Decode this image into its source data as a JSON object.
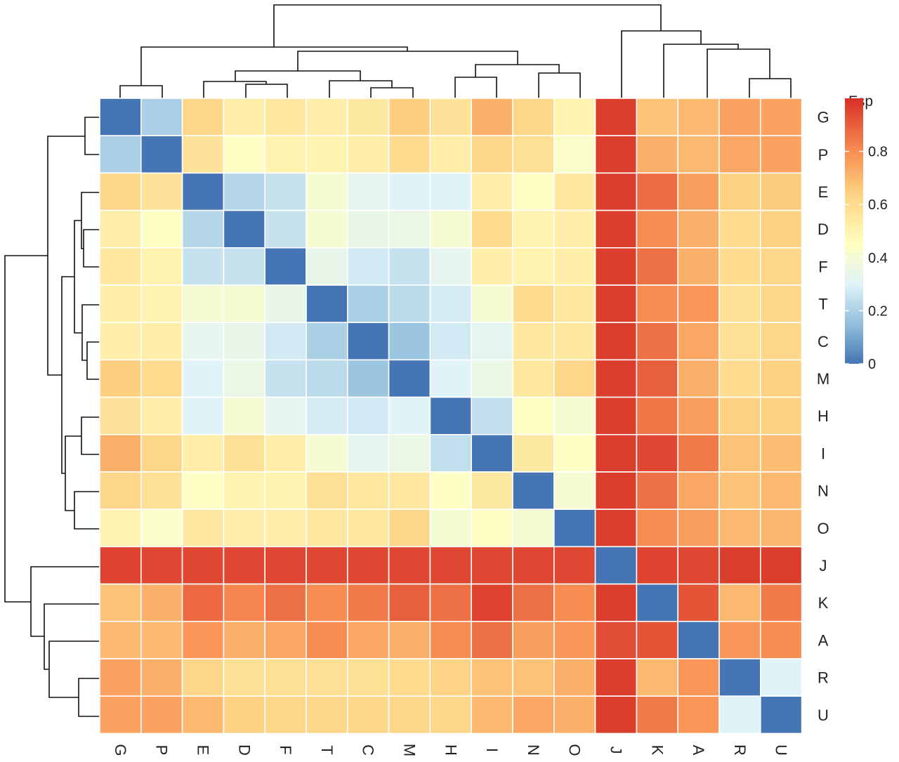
{
  "chart_data": {
    "type": "heatmap",
    "title": "",
    "xlabel": "",
    "ylabel": "",
    "rows": [
      "G",
      "P",
      "E",
      "D",
      "F",
      "T",
      "C",
      "M",
      "H",
      "I",
      "N",
      "O",
      "J",
      "K",
      "A",
      "R",
      "U"
    ],
    "columns": [
      "G",
      "P",
      "E",
      "D",
      "F",
      "T",
      "C",
      "M",
      "H",
      "I",
      "N",
      "O",
      "J",
      "K",
      "A",
      "R",
      "U"
    ],
    "values": [
      [
        0.0,
        0.2,
        0.62,
        0.52,
        0.55,
        0.52,
        0.54,
        0.65,
        0.57,
        0.72,
        0.62,
        0.5,
        0.97,
        0.68,
        0.7,
        0.75,
        0.75
      ],
      [
        0.2,
        0.0,
        0.57,
        0.44,
        0.5,
        0.5,
        0.52,
        0.6,
        0.52,
        0.62,
        0.58,
        0.42,
        0.97,
        0.72,
        0.7,
        0.74,
        0.75
      ],
      [
        0.62,
        0.57,
        0.0,
        0.22,
        0.25,
        0.4,
        0.33,
        0.3,
        0.3,
        0.52,
        0.44,
        0.55,
        0.97,
        0.87,
        0.76,
        0.64,
        0.66
      ],
      [
        0.52,
        0.44,
        0.22,
        0.0,
        0.25,
        0.4,
        0.34,
        0.35,
        0.4,
        0.6,
        0.5,
        0.52,
        0.97,
        0.8,
        0.72,
        0.6,
        0.64
      ],
      [
        0.55,
        0.5,
        0.25,
        0.25,
        0.0,
        0.34,
        0.27,
        0.25,
        0.33,
        0.52,
        0.5,
        0.52,
        0.97,
        0.86,
        0.72,
        0.6,
        0.62
      ],
      [
        0.52,
        0.5,
        0.4,
        0.4,
        0.34,
        0.0,
        0.2,
        0.23,
        0.28,
        0.4,
        0.6,
        0.55,
        0.97,
        0.8,
        0.78,
        0.58,
        0.62
      ],
      [
        0.52,
        0.52,
        0.33,
        0.34,
        0.27,
        0.2,
        0.0,
        0.17,
        0.27,
        0.32,
        0.55,
        0.55,
        0.97,
        0.86,
        0.74,
        0.58,
        0.62
      ],
      [
        0.65,
        0.6,
        0.3,
        0.35,
        0.25,
        0.23,
        0.17,
        0.0,
        0.3,
        0.35,
        0.55,
        0.62,
        0.97,
        0.9,
        0.72,
        0.6,
        0.64
      ],
      [
        0.57,
        0.52,
        0.3,
        0.4,
        0.33,
        0.28,
        0.27,
        0.3,
        0.0,
        0.24,
        0.44,
        0.4,
        0.97,
        0.85,
        0.76,
        0.64,
        0.64
      ],
      [
        0.72,
        0.62,
        0.52,
        0.58,
        0.52,
        0.4,
        0.32,
        0.35,
        0.24,
        0.0,
        0.54,
        0.44,
        0.97,
        0.95,
        0.84,
        0.68,
        0.69
      ],
      [
        0.62,
        0.58,
        0.44,
        0.5,
        0.5,
        0.58,
        0.55,
        0.55,
        0.44,
        0.54,
        0.0,
        0.4,
        0.97,
        0.86,
        0.74,
        0.68,
        0.7
      ],
      [
        0.5,
        0.42,
        0.55,
        0.52,
        0.52,
        0.55,
        0.55,
        0.62,
        0.4,
        0.44,
        0.4,
        0.0,
        0.97,
        0.8,
        0.76,
        0.7,
        0.71
      ],
      [
        0.96,
        0.95,
        0.95,
        0.95,
        0.95,
        0.95,
        0.95,
        0.95,
        0.95,
        0.95,
        0.95,
        0.95,
        0.0,
        0.96,
        0.95,
        0.97,
        0.97
      ],
      [
        0.68,
        0.72,
        0.88,
        0.82,
        0.86,
        0.8,
        0.84,
        0.9,
        0.86,
        0.96,
        0.86,
        0.8,
        0.97,
        0.0,
        0.92,
        0.7,
        0.84
      ],
      [
        0.7,
        0.7,
        0.78,
        0.72,
        0.74,
        0.8,
        0.74,
        0.72,
        0.8,
        0.86,
        0.76,
        0.78,
        0.94,
        0.92,
        0.0,
        0.78,
        0.8
      ],
      [
        0.75,
        0.72,
        0.62,
        0.58,
        0.58,
        0.58,
        0.58,
        0.6,
        0.63,
        0.68,
        0.68,
        0.72,
        0.97,
        0.7,
        0.78,
        0.0,
        0.3
      ],
      [
        0.75,
        0.75,
        0.7,
        0.64,
        0.62,
        0.62,
        0.62,
        0.62,
        0.62,
        0.7,
        0.74,
        0.72,
        0.97,
        0.84,
        0.78,
        0.3,
        0.0
      ]
    ],
    "color_scale": {
      "title": "Fsp",
      "domain": [
        0,
        1
      ],
      "ticks": [
        "0",
        "0.2",
        "0.4",
        "0.6",
        "0.8"
      ],
      "tick_values": [
        0,
        0.2,
        0.4,
        0.6,
        0.8
      ],
      "stops": [
        {
          "value": 0.0,
          "color": "#4575b4"
        },
        {
          "value": 0.15,
          "color": "#91bfdb"
        },
        {
          "value": 0.3,
          "color": "#e0f3f8"
        },
        {
          "value": 0.45,
          "color": "#ffffbf"
        },
        {
          "value": 0.65,
          "color": "#fdcf7f"
        },
        {
          "value": 0.8,
          "color": "#f88d52"
        },
        {
          "value": 1.0,
          "color": "#d73027"
        }
      ]
    },
    "cell_separator_color": "#ffffff",
    "legend_placement": "right",
    "row_dendrogram": "left",
    "column_dendrogram": "top",
    "grid": false
  }
}
